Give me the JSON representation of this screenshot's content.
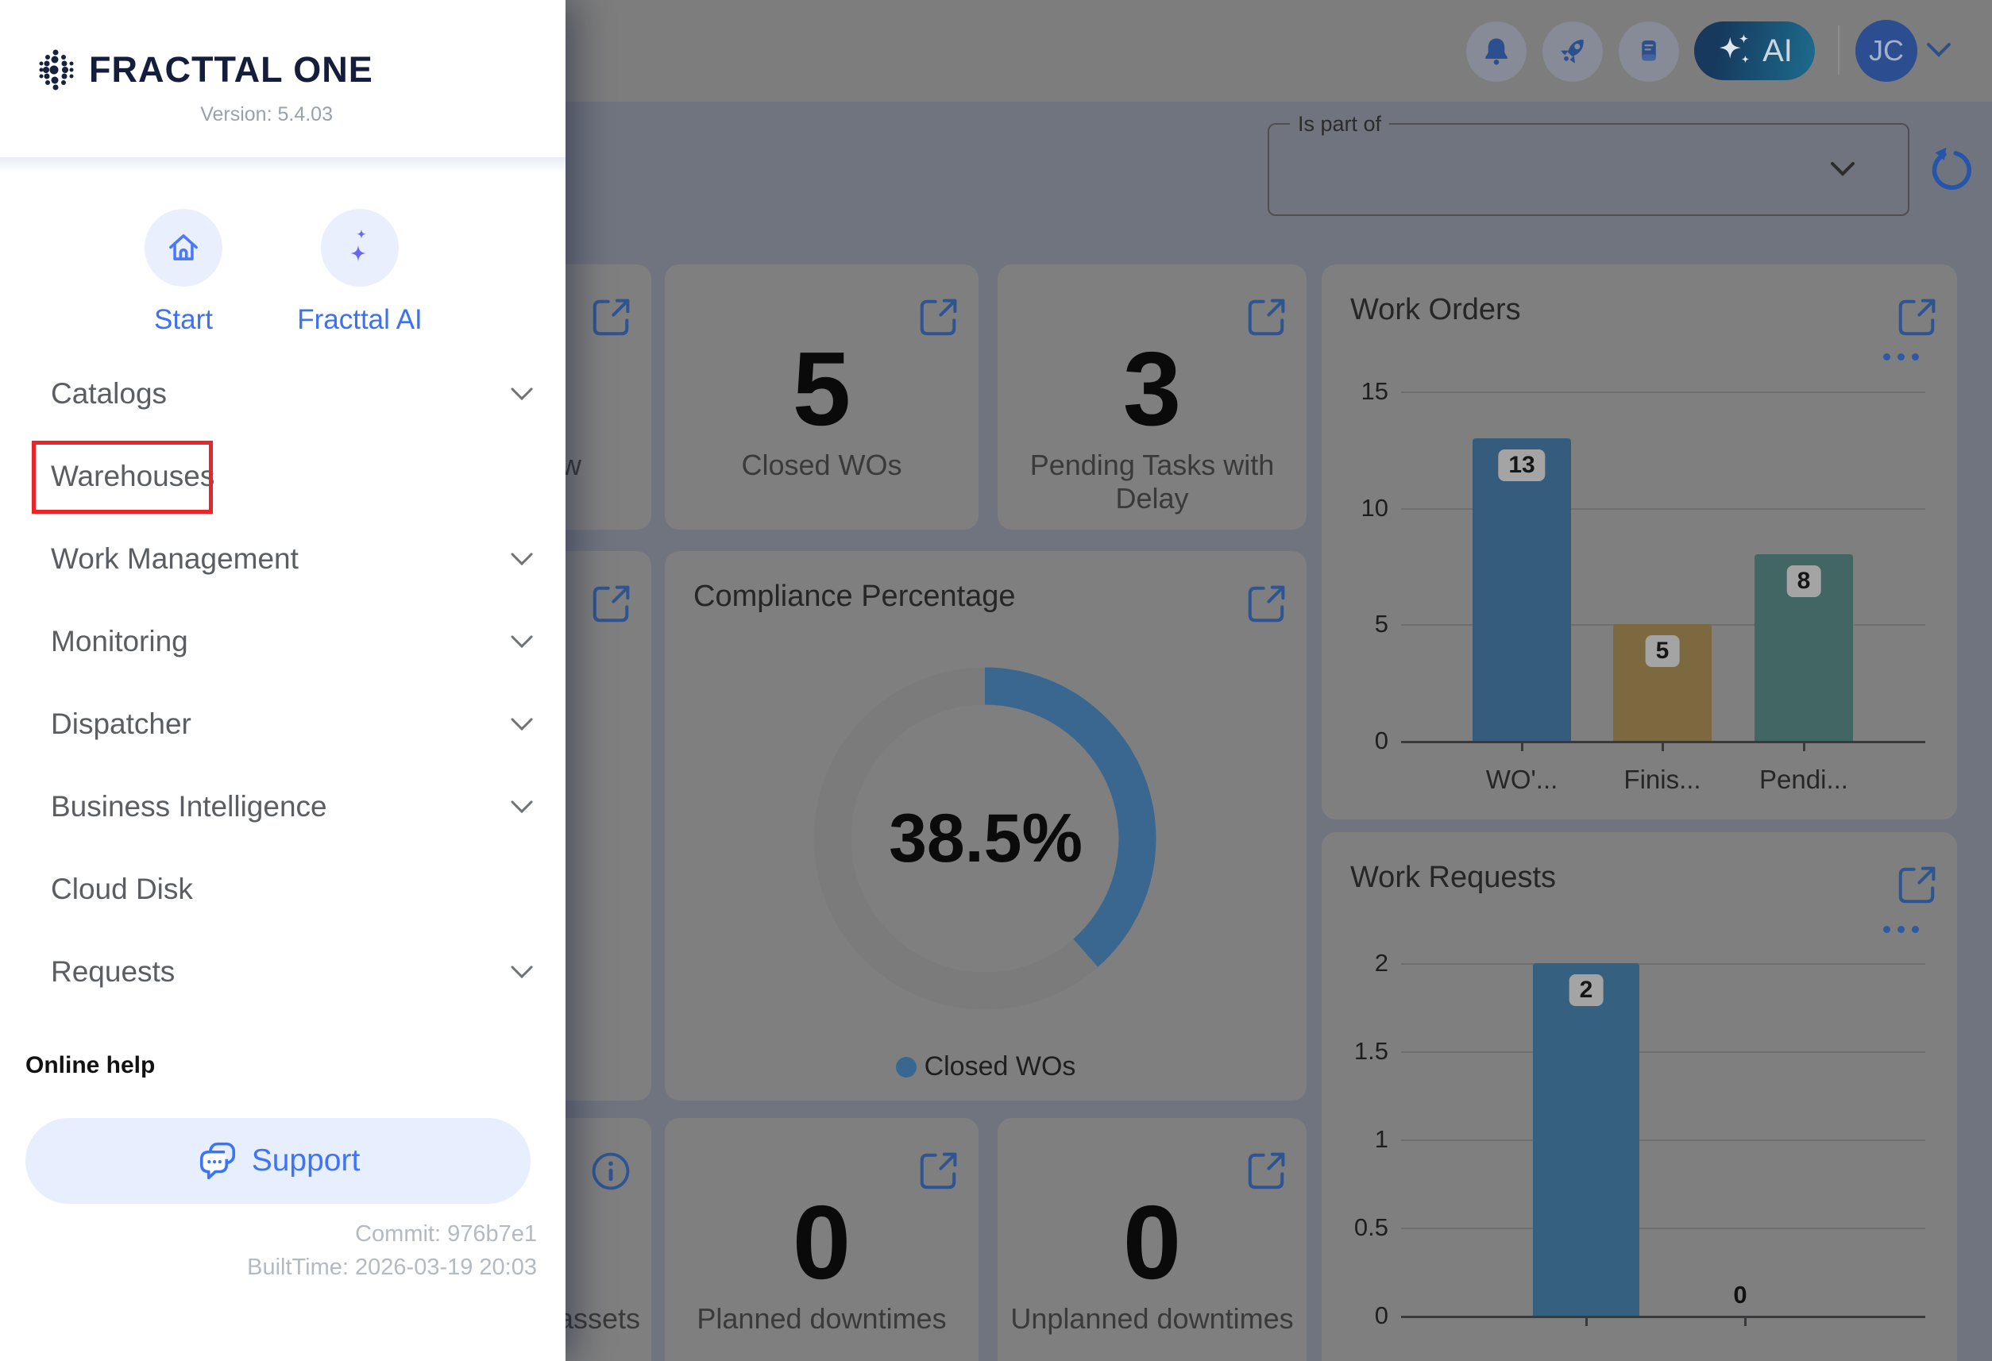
{
  "app": {
    "brand": "FRACTTAL ONE",
    "version_label": "Version: 5.4.03",
    "commit": "Commit: 976b7e1",
    "built_time": "BuiltTime: 2026-03-19 20:03"
  },
  "topbar": {
    "icons": [
      "bell-icon",
      "rocket-icon",
      "handbook-icon"
    ],
    "ai_label": "AI",
    "avatar_initials": "JC"
  },
  "filter": {
    "label": "Is part of",
    "value": ""
  },
  "sidebar": {
    "shortcuts": [
      {
        "label": "Start",
        "icon": "home-icon"
      },
      {
        "label": "Fracttal AI",
        "icon": "sparkles-icon"
      }
    ],
    "items": [
      {
        "label": "Catalogs",
        "expandable": true,
        "highlighted": false
      },
      {
        "label": "Warehouses",
        "expandable": false,
        "highlighted": true
      },
      {
        "label": "Work Management",
        "expandable": true,
        "highlighted": false
      },
      {
        "label": "Monitoring",
        "expandable": true,
        "highlighted": false
      },
      {
        "label": "Dispatcher",
        "expandable": true,
        "highlighted": false
      },
      {
        "label": "Business Intelligence",
        "expandable": true,
        "highlighted": false
      },
      {
        "label": "Cloud Disk",
        "expandable": false,
        "highlighted": false
      },
      {
        "label": "Requests",
        "expandable": true,
        "highlighted": false
      }
    ],
    "online_help": "Online help",
    "support_label": "Support"
  },
  "cards": {
    "partial_row1_fragment": "w",
    "closed_wos": {
      "value": "5",
      "label": "Closed WOs"
    },
    "pending_tasks": {
      "value": "3",
      "label": "Pending Tasks with Delay"
    },
    "planned_downtimes": {
      "value": "0",
      "label": "Planned downtimes"
    },
    "unplanned_downtimes": {
      "value": "0",
      "label": "Unplanned downtimes"
    },
    "partial_row3_fragment": "assets"
  },
  "chart_data": [
    {
      "id": "work_orders",
      "type": "bar",
      "title": "Work Orders",
      "categories": [
        "WO'...",
        "Finis...",
        "Pendi..."
      ],
      "values": [
        13,
        5,
        8
      ],
      "bar_colors": [
        "#355b7d",
        "#7d6940",
        "#416663"
      ],
      "y_ticks": [
        0,
        5,
        10,
        15
      ],
      "ylim": [
        0,
        15
      ],
      "grid": true,
      "value_labels": true,
      "legend_position": "none"
    },
    {
      "id": "work_requests",
      "type": "bar",
      "title": "Work Requests",
      "categories": [
        "",
        ""
      ],
      "values": [
        2,
        0
      ],
      "bar_colors": [
        "#35607f",
        "#35607f"
      ],
      "y_ticks": [
        0,
        0.5,
        1,
        1.5,
        2
      ],
      "ylim": [
        0,
        2
      ],
      "grid": true,
      "value_labels": true,
      "legend_position": "none",
      "note": "x-axis category labels are cut off by the viewport bottom"
    },
    {
      "id": "compliance",
      "type": "donut",
      "title": "Compliance Percentage",
      "percent": 38.5,
      "center_label": "38.5%",
      "legend": [
        "Closed WOs"
      ],
      "arc_color": "#39678f",
      "track_color": "#7b7b7b"
    }
  ],
  "colors": {
    "sidebar_bg": "#ffffff",
    "accent_blue": "#3b71f7",
    "brand_navy": "#141e3c",
    "annotation_red": "#eb2428",
    "topbar_dimmed": "#7d7d7d",
    "backdrop_dimmed": "#70747e",
    "card_dimmed": "#7f7f7f",
    "icon_blue_dimmed": "#2e5591"
  }
}
